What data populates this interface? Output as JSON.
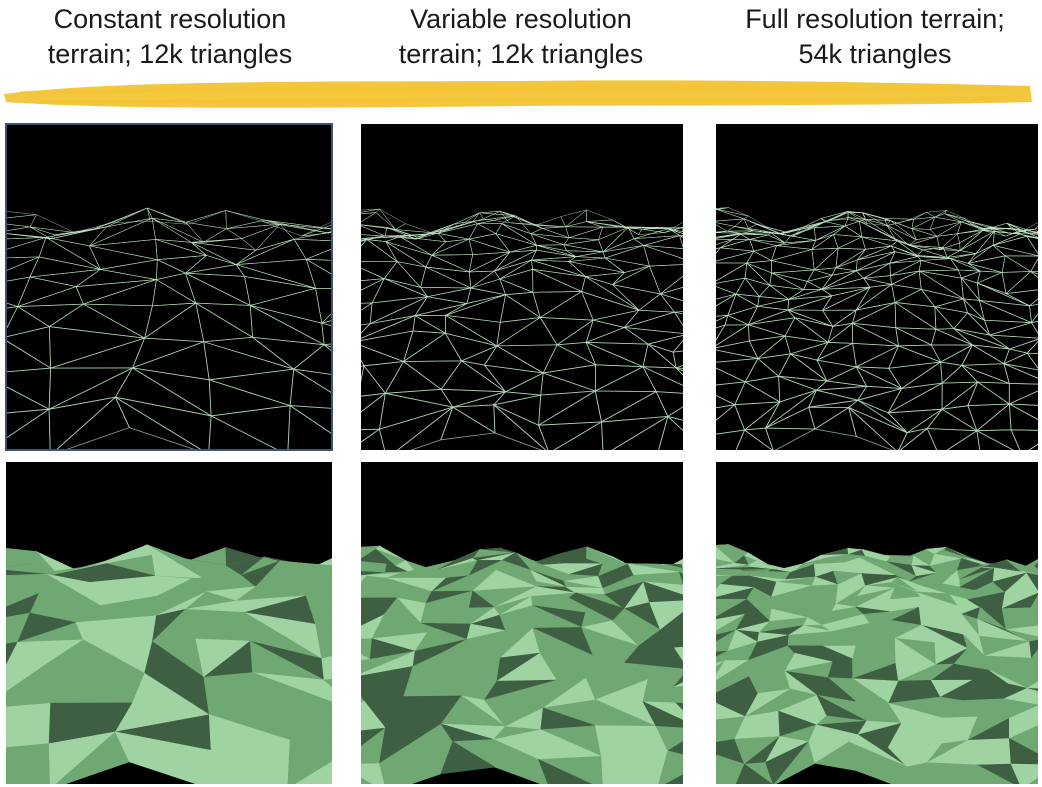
{
  "slide": {
    "captions": [
      {
        "line1": "Constant resolution",
        "line2": "terrain; 12k triangles"
      },
      {
        "line1": "Variable resolution",
        "line2": "terrain; 12k triangles"
      },
      {
        "line1": "Full resolution terrain;",
        "line2": "54k triangles"
      }
    ]
  },
  "style": {
    "sky": "#000000",
    "wire": "#bfe6c4",
    "shade_light": "#9fd4a2",
    "shade_mid": "#6fa873",
    "shade_dark": "#3f5f43",
    "brush": "#f2c12e",
    "selection_border": "#3d5570"
  },
  "panels": [
    {
      "id": "constant-wireframe",
      "render": "wireframe",
      "density": 1
    },
    {
      "id": "variable-wireframe",
      "render": "wireframe",
      "density": 2
    },
    {
      "id": "full-wireframe",
      "render": "wireframe",
      "density": 3
    },
    {
      "id": "constant-shaded",
      "render": "shaded",
      "density": 1
    },
    {
      "id": "variable-shaded",
      "render": "shaded",
      "density": 2
    },
    {
      "id": "full-shaded",
      "render": "shaded",
      "density": 3
    }
  ]
}
